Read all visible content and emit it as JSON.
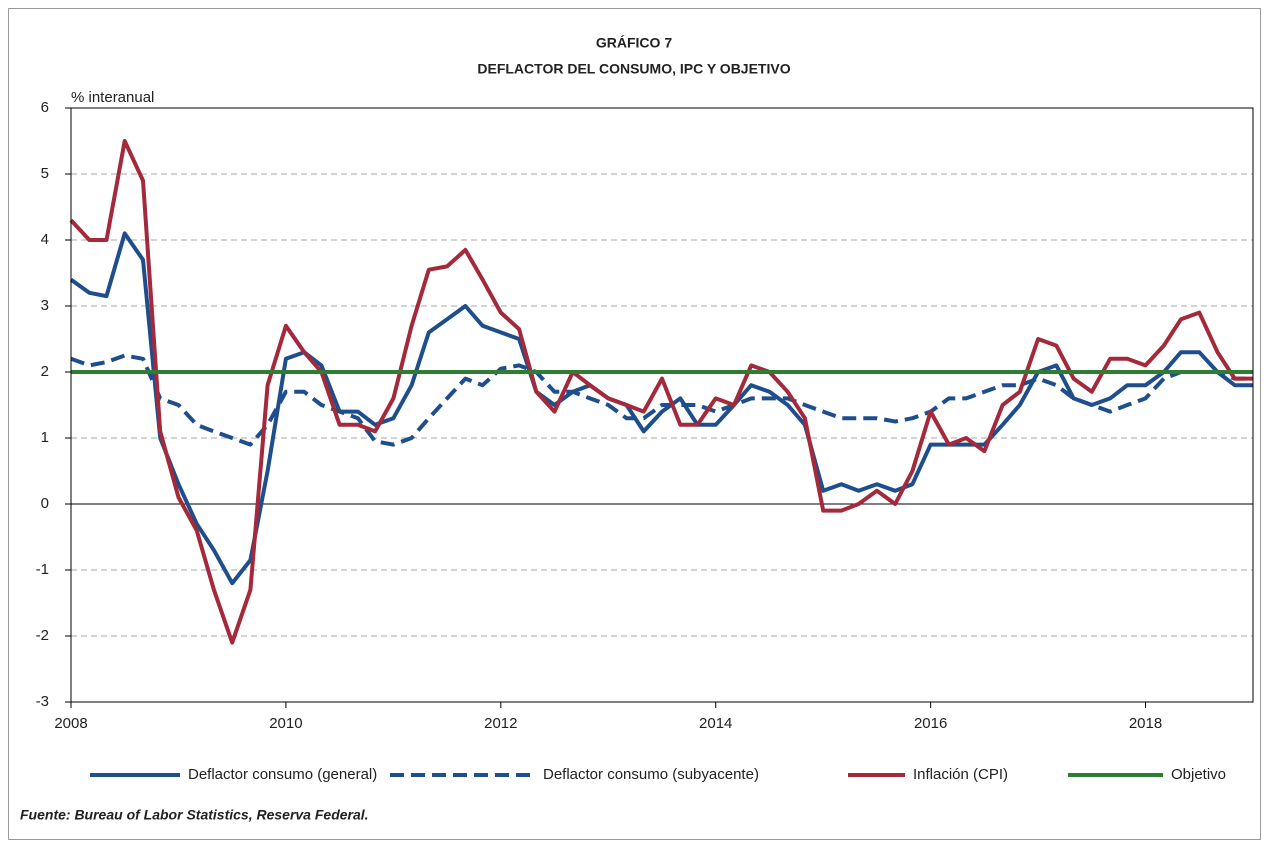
{
  "chart_data": {
    "type": "line",
    "title": "GRÁFICO 7",
    "subtitle": "DEFLACTOR DEL CONSUMO, IPC Y OBJETIVO",
    "y_label": "% interanual",
    "source": "Fuente: Bureau of Labor Statistics, Reserva Federal.",
    "x": [
      2008,
      2008.17,
      2008.33,
      2008.5,
      2008.67,
      2008.83,
      2009,
      2009.17,
      2009.33,
      2009.5,
      2009.67,
      2009.83,
      2010,
      2010.17,
      2010.33,
      2010.5,
      2010.67,
      2010.83,
      2011,
      2011.17,
      2011.33,
      2011.5,
      2011.67,
      2011.83,
      2012,
      2012.17,
      2012.33,
      2012.5,
      2012.67,
      2012.83,
      2013,
      2013.17,
      2013.33,
      2013.5,
      2013.67,
      2013.83,
      2014,
      2014.17,
      2014.33,
      2014.5,
      2014.67,
      2014.83,
      2015,
      2015.17,
      2015.33,
      2015.5,
      2015.67,
      2015.83,
      2016,
      2016.17,
      2016.33,
      2016.5,
      2016.67,
      2016.83,
      2017,
      2017.17,
      2017.33,
      2017.5,
      2017.67,
      2017.83,
      2018,
      2018.17,
      2018.33,
      2018.5,
      2018.67,
      2018.83,
      2019
    ],
    "series": [
      {
        "name": "Deflactor consumo (general)",
        "color": "#1f4e8c",
        "style": "solid",
        "values": [
          3.4,
          3.2,
          3.15,
          4.1,
          3.7,
          1.0,
          0.3,
          -0.3,
          -0.7,
          -1.2,
          -0.85,
          0.5,
          2.2,
          2.3,
          2.1,
          1.4,
          1.4,
          1.2,
          1.3,
          1.8,
          2.6,
          2.8,
          3.0,
          2.7,
          2.6,
          2.5,
          1.7,
          1.5,
          1.7,
          1.8,
          1.6,
          1.5,
          1.1,
          1.4,
          1.6,
          1.2,
          1.2,
          1.5,
          1.8,
          1.7,
          1.5,
          1.2,
          0.2,
          0.3,
          0.2,
          0.3,
          0.2,
          0.3,
          0.9,
          0.9,
          0.9,
          0.9,
          1.2,
          1.5,
          2.0,
          2.1,
          1.6,
          1.5,
          1.6,
          1.8,
          1.8,
          2.0,
          2.3,
          2.3,
          2.0,
          1.8,
          1.8
        ]
      },
      {
        "name": "Deflactor consumo (subyacente)",
        "color": "#1f4e8c",
        "style": "dashed",
        "values": [
          2.2,
          2.1,
          2.15,
          2.25,
          2.2,
          1.6,
          1.5,
          1.2,
          1.1,
          1.0,
          0.9,
          1.2,
          1.7,
          1.7,
          1.5,
          1.4,
          1.3,
          0.95,
          0.9,
          1.0,
          1.3,
          1.6,
          1.9,
          1.8,
          2.05,
          2.1,
          2.0,
          1.7,
          1.7,
          1.6,
          1.5,
          1.3,
          1.3,
          1.5,
          1.5,
          1.5,
          1.4,
          1.5,
          1.6,
          1.6,
          1.6,
          1.5,
          1.4,
          1.3,
          1.3,
          1.3,
          1.25,
          1.3,
          1.4,
          1.6,
          1.6,
          1.7,
          1.8,
          1.8,
          1.9,
          1.8,
          1.6,
          1.5,
          1.4,
          1.5,
          1.6,
          1.9,
          2.0,
          2.0,
          2.0,
          1.9,
          1.9
        ]
      },
      {
        "name": "Inflación (CPI)",
        "color": "#a3293b",
        "style": "solid",
        "values": [
          4.3,
          4.0,
          4.0,
          5.5,
          4.9,
          1.1,
          0.1,
          -0.4,
          -1.3,
          -2.1,
          -1.3,
          1.8,
          2.7,
          2.3,
          2.0,
          1.2,
          1.2,
          1.1,
          1.6,
          2.7,
          3.55,
          3.6,
          3.85,
          3.4,
          2.9,
          2.65,
          1.7,
          1.4,
          2.0,
          1.8,
          1.6,
          1.5,
          1.4,
          1.9,
          1.2,
          1.2,
          1.6,
          1.5,
          2.1,
          2.0,
          1.7,
          1.3,
          -0.1,
          -0.1,
          0.0,
          0.2,
          0.0,
          0.5,
          1.4,
          0.9,
          1.0,
          0.8,
          1.5,
          1.7,
          2.5,
          2.4,
          1.9,
          1.7,
          2.2,
          2.2,
          2.1,
          2.4,
          2.8,
          2.9,
          2.3,
          1.9,
          1.9
        ]
      },
      {
        "name": "Objetivo",
        "color": "#2e7d32",
        "style": "solid",
        "values": [
          2,
          2,
          2,
          2,
          2,
          2,
          2,
          2,
          2,
          2,
          2,
          2,
          2,
          2,
          2,
          2,
          2,
          2,
          2,
          2,
          2,
          2,
          2,
          2,
          2,
          2,
          2,
          2,
          2,
          2,
          2,
          2,
          2,
          2,
          2,
          2,
          2,
          2,
          2,
          2,
          2,
          2,
          2,
          2,
          2,
          2,
          2,
          2,
          2,
          2,
          2,
          2,
          2,
          2,
          2,
          2,
          2,
          2,
          2,
          2,
          2,
          2,
          2,
          2,
          2,
          2,
          2
        ]
      }
    ],
    "xlim": [
      2008,
      2019
    ],
    "xticks": [
      2008,
      2010,
      2012,
      2014,
      2016,
      2018
    ],
    "ylim": [
      -3,
      6
    ],
    "yticks": [
      -3,
      -2,
      -1,
      0,
      1,
      2,
      3,
      4,
      5,
      6
    ],
    "grid": true,
    "legend": "bottom"
  }
}
